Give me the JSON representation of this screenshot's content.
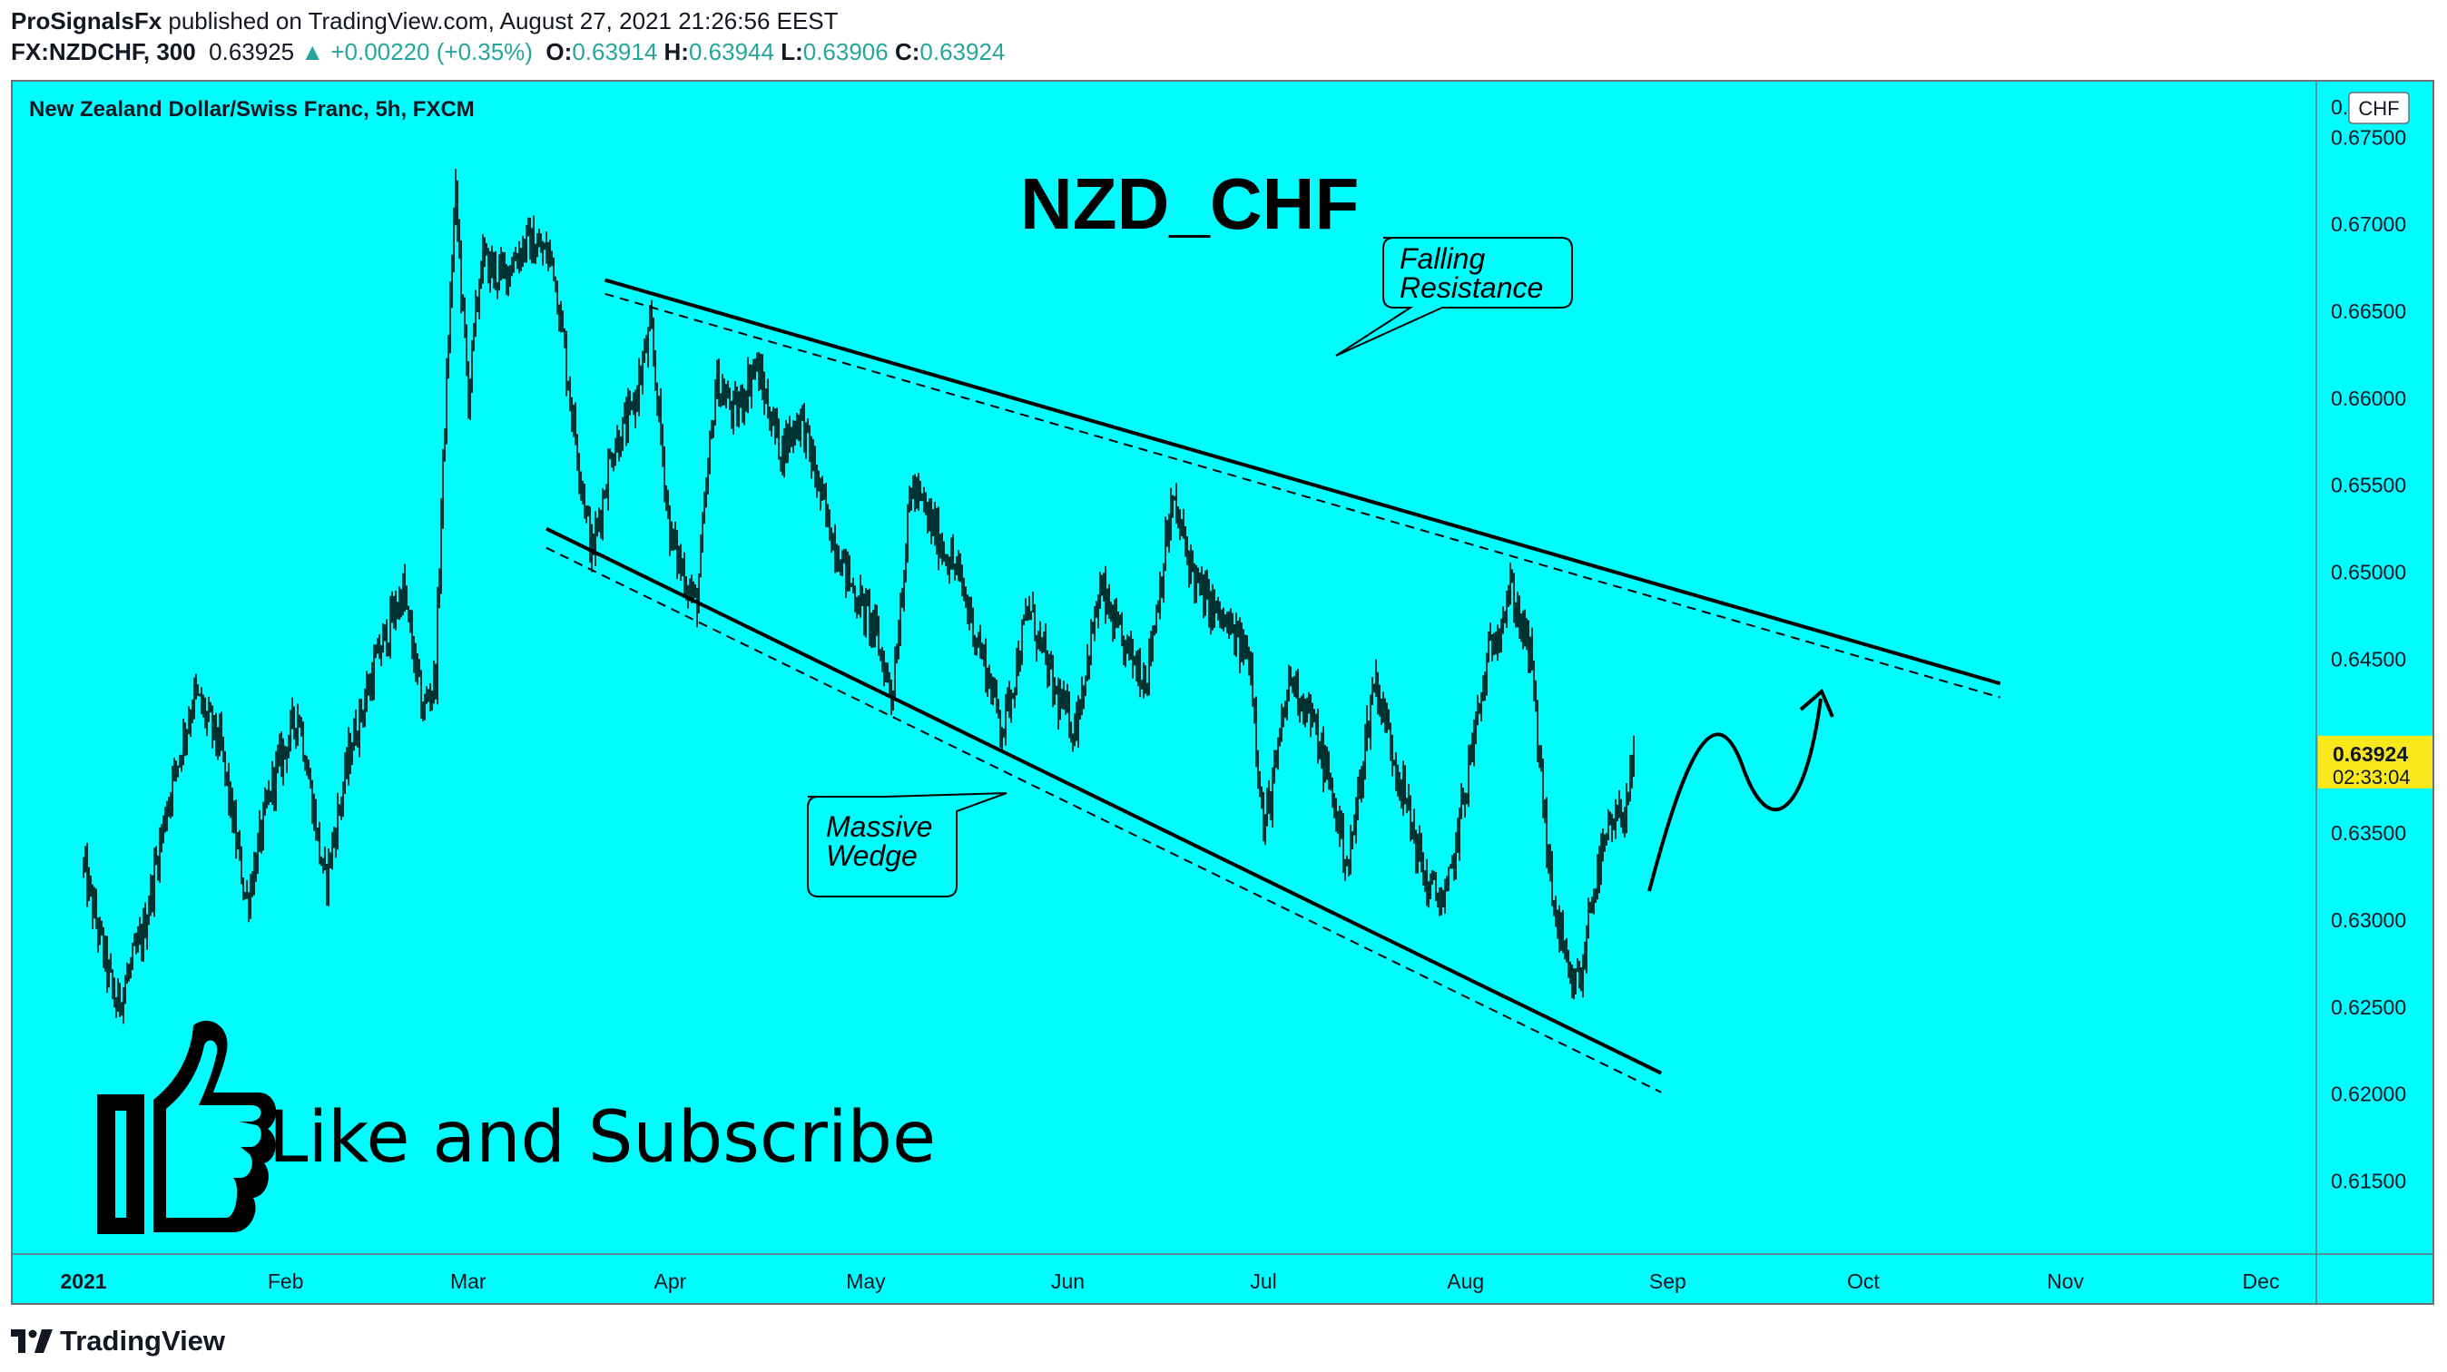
{
  "header": {
    "author": "ProSignalsFx",
    "published_text": "published on TradingView.com, August 27, 2021 21:26:56 EEST",
    "symbol": "FX:NZDCHF, 300",
    "last_price": "0.63925",
    "change": "+0.00220 (+0.35%)",
    "open_label": "O:",
    "open": "0.63914",
    "high_label": "H:",
    "high": "0.63944",
    "low_label": "L:",
    "low": "0.63906",
    "close_label": "C:",
    "close": "0.63924"
  },
  "colors": {
    "background": "#00fcfc",
    "candles": "#000000",
    "price_tag": "#f8e81c",
    "up_arrow": "#26a69a"
  },
  "footer": {
    "brand": "TradingView"
  },
  "chart_data": {
    "type": "line",
    "instrument": "New Zealand Dollar/Swiss Franc, 5h, FXCM",
    "title": "NZD_CHF",
    "currency_badge": "CHF",
    "grid": false,
    "x_tick_labels": [
      "2021",
      "Feb",
      "Mar",
      "Apr",
      "May",
      "Jun",
      "Jul",
      "Aug",
      "Sep",
      "Oct",
      "Nov",
      "Dec"
    ],
    "y_tick_values": [
      0.615,
      0.62,
      0.625,
      0.63,
      0.635,
      0.64,
      0.645,
      0.65,
      0.655,
      0.66,
      0.665,
      0.67,
      0.675
    ],
    "y_tick_labels": [
      "0.61500",
      "0.62000",
      "0.62500",
      "0.63000",
      "0.63500",
      "0.64000",
      "0.64500",
      "0.65000",
      "0.65500",
      "0.66000",
      "0.66500",
      "0.67000",
      "0.67500"
    ],
    "top_tick_partial": "0.",
    "ylim": [
      0.6108,
      0.6782
    ],
    "price_tag": {
      "value": 0.63924,
      "label": "0.63924",
      "countdown": "02:33:04"
    },
    "series": [
      {
        "x": [
          "2021-01-01",
          "2021-01-06",
          "2021-01-10",
          "2021-01-14",
          "2021-01-18",
          "2021-01-22",
          "2021-01-26",
          "2021-01-30",
          "2021-02-03",
          "2021-02-07",
          "2021-02-11",
          "2021-02-15",
          "2021-02-19",
          "2021-02-22",
          "2021-02-24",
          "2021-02-25",
          "2021-02-27",
          "2021-03-01",
          "2021-03-03",
          "2021-03-06",
          "2021-03-10",
          "2021-03-14",
          "2021-03-17",
          "2021-03-20",
          "2021-03-23",
          "2021-03-26",
          "2021-03-29",
          "2021-04-01",
          "2021-04-05",
          "2021-04-08",
          "2021-04-11",
          "2021-04-14",
          "2021-04-18",
          "2021-04-21",
          "2021-04-25",
          "2021-04-29",
          "2021-05-02",
          "2021-05-05",
          "2021-05-08",
          "2021-05-12",
          "2021-05-15",
          "2021-05-19",
          "2021-05-22",
          "2021-05-26",
          "2021-05-30",
          "2021-06-02",
          "2021-06-06",
          "2021-06-09",
          "2021-06-13",
          "2021-06-17",
          "2021-06-21",
          "2021-06-25",
          "2021-06-29",
          "2021-07-01",
          "2021-07-03",
          "2021-07-05",
          "2021-07-08",
          "2021-07-11",
          "2021-07-14",
          "2021-07-18",
          "2021-07-22",
          "2021-07-26",
          "2021-07-29",
          "2021-08-02",
          "2021-08-05",
          "2021-08-08",
          "2021-08-11",
          "2021-08-14",
          "2021-08-17",
          "2021-08-19",
          "2021-08-20",
          "2021-08-23",
          "2021-08-25",
          "2021-08-27"
        ],
        "y": [
          0.633,
          0.625,
          0.629,
          0.637,
          0.643,
          0.64,
          0.631,
          0.638,
          0.642,
          0.632,
          0.64,
          0.645,
          0.649,
          0.642,
          0.644,
          0.655,
          0.672,
          0.66,
          0.668,
          0.667,
          0.669,
          0.668,
          0.659,
          0.651,
          0.657,
          0.659,
          0.664,
          0.652,
          0.648,
          0.661,
          0.659,
          0.662,
          0.657,
          0.659,
          0.653,
          0.649,
          0.647,
          0.643,
          0.655,
          0.652,
          0.65,
          0.645,
          0.641,
          0.648,
          0.643,
          0.641,
          0.649,
          0.646,
          0.644,
          0.654,
          0.649,
          0.647,
          0.645,
          0.635,
          0.639,
          0.644,
          0.642,
          0.638,
          0.633,
          0.644,
          0.638,
          0.632,
          0.631,
          0.64,
          0.646,
          0.649,
          0.645,
          0.632,
          0.626,
          0.627,
          0.631,
          0.635,
          0.636,
          0.6392
        ]
      }
    ],
    "trendlines": [
      {
        "name": "resistance",
        "from": [
          "2021-03-22",
          0.6668
        ],
        "to": [
          "2021-10-22",
          0.6436
        ]
      },
      {
        "name": "support",
        "from": [
          "2021-03-13",
          0.6525
        ],
        "to": [
          "2021-08-31",
          0.6212
        ]
      }
    ],
    "annotations": [
      {
        "text": "Falling Resistance"
      },
      {
        "text": "Massive Wedge"
      },
      {
        "text": "Like and Subscribe"
      }
    ]
  }
}
